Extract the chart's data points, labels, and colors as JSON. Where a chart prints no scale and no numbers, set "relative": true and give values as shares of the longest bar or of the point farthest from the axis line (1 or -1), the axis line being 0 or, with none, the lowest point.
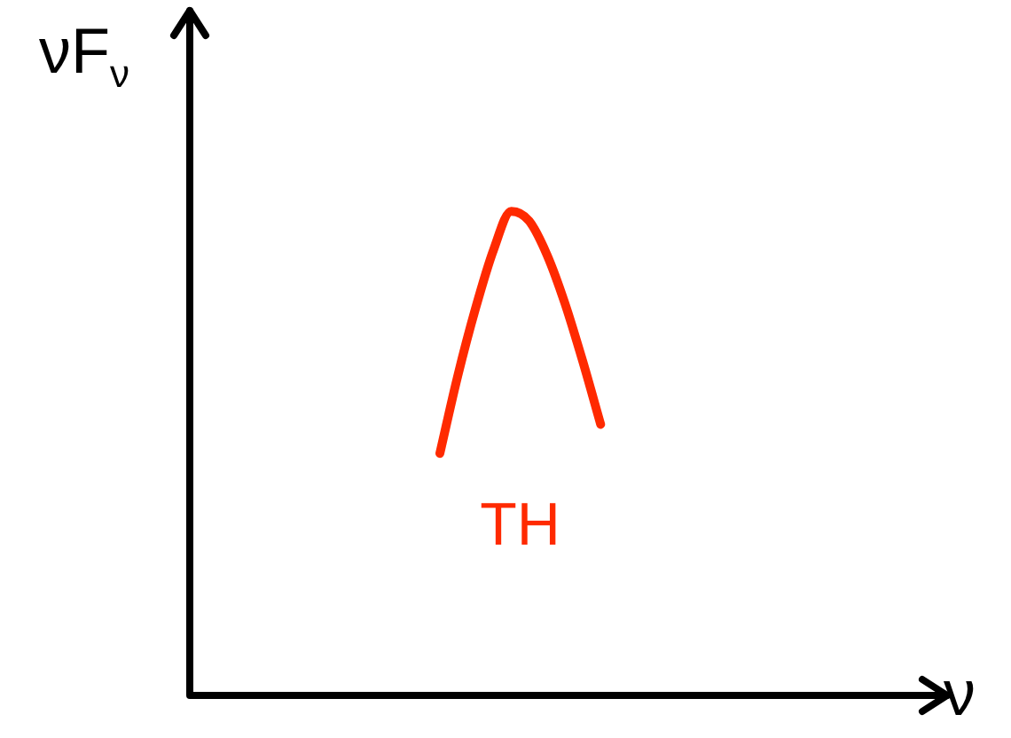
{
  "chart_data": {
    "type": "line",
    "relative": true,
    "xlabel": "ν",
    "ylabel": "νF$_{ν}$",
    "marker": "none",
    "legend": false,
    "categories": [
      null,
      null,
      null,
      null,
      null,
      null,
      null,
      null,
      null,
      null,
      null,
      null,
      null,
      null,
      null,
      null,
      null,
      null,
      null,
      null,
      null,
      null,
      null,
      null,
      null,
      null,
      null,
      null,
      null,
      null,
      null,
      null,
      null,
      null,
      null,
      null,
      null,
      null,
      null,
      null,
      null,
      null,
      null
    ],
    "series": [
      {
        "name": "TH",
        "color": "#ff2a00",
        "values": [
          null,
          null,
          null,
          null,
          null,
          null,
          null,
          null,
          null,
          null,
          null,
          null,
          null,
          null,
          0.5,
          0.66,
          0.8,
          0.92,
          1,
          0.98,
          0.91,
          0.81,
          0.69,
          0.56,
          null,
          null,
          null,
          null,
          null,
          null,
          null,
          null,
          null,
          null,
          null,
          null,
          null,
          null,
          null,
          null,
          null,
          null,
          null
        ]
      }
    ]
  }
}
